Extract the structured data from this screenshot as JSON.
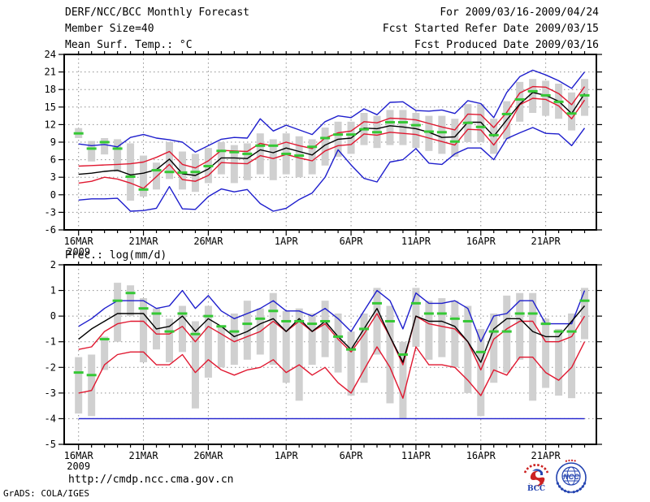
{
  "header": {
    "title": "DERF/NCC/BCC Monthly Forecast",
    "for_line": "For 2009/03/16-2009/04/24",
    "member_line": "Member Size=40",
    "refer_line": "Fcst Started Refer Date 2009/03/15",
    "produced_line": "Fcst Produced Date 2009/03/16"
  },
  "footer": {
    "url": "http://cmdp.ncc.cma.gov.cn",
    "credit": "GrADS: COLA/IGES",
    "bcc_label": "BCC",
    "ncc_label": "NCC"
  },
  "colors": {
    "line_blue": "#1e1ecd",
    "line_red": "#e01830",
    "line_black": "#000000",
    "dash_green": "#35c835",
    "bar_gray": "#d0d0d0",
    "grid_gray": "#8f8f8f",
    "frame_black": "#000000",
    "logo_blue": "#2343b0",
    "logo_red": "#cc2222"
  },
  "chart_data": [
    {
      "type": "line",
      "title": "Mean Surf. Temp.: °C",
      "ylim": [
        -6,
        24
      ],
      "yticks": [
        24,
        21,
        18,
        15,
        12,
        9,
        6,
        3,
        0,
        -3,
        -6
      ],
      "days": 40,
      "xticks": [
        {
          "day": 0,
          "label": "16MAR",
          "sub": "2009"
        },
        {
          "day": 5,
          "label": "21MAR"
        },
        {
          "day": 10,
          "label": "26MAR"
        },
        {
          "day": 16,
          "label": "1APR"
        },
        {
          "day": 21,
          "label": "6APR"
        },
        {
          "day": 26,
          "label": "11APR"
        },
        {
          "day": 31,
          "label": "16APR"
        },
        {
          "day": 36,
          "label": "21APR"
        }
      ],
      "series": {
        "blue_max": [
          8.7,
          8.4,
          8.6,
          8.2,
          9.8,
          10.3,
          9.7,
          9.4,
          9.0,
          7.3,
          8.4,
          9.5,
          9.8,
          9.7,
          13.0,
          10.9,
          11.9,
          11.1,
          10.3,
          12.5,
          13.5,
          13.2,
          14.7,
          13.7,
          15.8,
          15.9,
          14.4,
          14.3,
          14.5,
          13.9,
          16.1,
          15.6,
          13.2,
          17.5,
          20.2,
          21.3,
          20.5,
          19.5,
          18.2,
          21.0
        ],
        "red_upper": [
          4.9,
          5.0,
          5.1,
          5.2,
          5.3,
          5.6,
          6.4,
          7.4,
          5.2,
          4.6,
          5.8,
          7.6,
          7.5,
          7.4,
          8.8,
          8.3,
          9.0,
          8.4,
          7.9,
          9.7,
          10.6,
          10.9,
          12.5,
          12.3,
          13.1,
          13.0,
          12.8,
          12.2,
          11.6,
          11.1,
          13.8,
          13.7,
          11.5,
          14.1,
          17.4,
          18.5,
          18.4,
          17.3,
          15.4,
          18.5
        ],
        "mean_black": [
          3.5,
          3.7,
          4.0,
          4.2,
          3.4,
          3.7,
          4.3,
          6.1,
          3.6,
          3.3,
          4.4,
          6.3,
          6.3,
          6.2,
          7.7,
          7.2,
          8.0,
          7.4,
          6.8,
          8.5,
          9.5,
          9.7,
          11.4,
          11.3,
          11.8,
          11.6,
          11.3,
          10.7,
          9.8,
          9.9,
          12.4,
          12.4,
          10.0,
          12.8,
          15.5,
          17.5,
          17.0,
          16.0,
          13.9,
          17.3
        ],
        "red_lower": [
          2.0,
          2.3,
          3.0,
          2.7,
          2.0,
          1.1,
          3.1,
          5.2,
          2.6,
          2.3,
          3.3,
          5.5,
          5.4,
          5.3,
          6.7,
          6.2,
          6.9,
          6.3,
          5.8,
          7.5,
          8.4,
          8.6,
          10.4,
          10.2,
          10.7,
          10.5,
          10.3,
          9.7,
          9.1,
          8.5,
          11.2,
          11.1,
          8.5,
          11.5,
          15.4,
          16.5,
          16.3,
          15.2,
          13.0,
          16.2
        ],
        "blue_min": [
          -0.9,
          -0.7,
          -0.7,
          -0.6,
          -2.8,
          -2.7,
          -2.3,
          1.4,
          -2.4,
          -2.5,
          -0.3,
          1.0,
          0.5,
          0.9,
          -1.5,
          -2.8,
          -2.3,
          -0.8,
          0.3,
          3.0,
          7.7,
          5.1,
          2.8,
          2.2,
          5.6,
          6.0,
          7.9,
          5.4,
          5.2,
          7.0,
          8.0,
          8.0,
          6.0,
          9.6,
          10.6,
          11.5,
          10.5,
          10.4,
          8.4,
          11.4
        ],
        "green_dash": [
          10.5,
          7.9,
          9.0,
          7.9,
          3.1,
          0.9,
          4.2,
          3.9,
          3.8,
          3.9,
          4.9,
          7.5,
          7.3,
          7.0,
          8.4,
          8.4,
          7.0,
          6.7,
          8.2,
          9.7,
          10.3,
          10.3,
          11.2,
          10.7,
          12.4,
          12.4,
          11.9,
          10.8,
          10.7,
          9.1,
          12.3,
          11.6,
          10.2,
          13.8,
          16.3,
          17.7,
          17.0,
          15.9,
          13.9,
          17.0
        ],
        "bar_range": [
          [
            9.7,
            11.4
          ],
          [
            5.7,
            9.2
          ],
          [
            6.9,
            9.7
          ],
          [
            3.9,
            9.5
          ],
          [
            -1.0,
            8.8
          ],
          [
            -0.3,
            6.7
          ],
          [
            0.9,
            5.5
          ],
          [
            2.7,
            9.0
          ],
          [
            0.9,
            7.4
          ],
          [
            0.5,
            7.0
          ],
          [
            2.0,
            8.0
          ],
          [
            3.5,
            9.0
          ],
          [
            2.0,
            8.5
          ],
          [
            2.5,
            8.8
          ],
          [
            3.5,
            10.5
          ],
          [
            2.5,
            9.5
          ],
          [
            3.5,
            10.5
          ],
          [
            3.0,
            10.0
          ],
          [
            3.5,
            9.5
          ],
          [
            5.0,
            11.5
          ],
          [
            6.5,
            12.5
          ],
          [
            7.0,
            12.5
          ],
          [
            8.5,
            14.0
          ],
          [
            8.0,
            13.5
          ],
          [
            8.5,
            14.5
          ],
          [
            8.5,
            14.5
          ],
          [
            8.0,
            14.0
          ],
          [
            7.5,
            13.5
          ],
          [
            7.0,
            13.5
          ],
          [
            6.5,
            13.0
          ],
          [
            9.0,
            15.5
          ],
          [
            9.0,
            15.5
          ],
          [
            7.0,
            13.0
          ],
          [
            9.5,
            16.0
          ],
          [
            12.5,
            19.3
          ],
          [
            14.0,
            19.8
          ],
          [
            13.5,
            19.5
          ],
          [
            13.0,
            19.0
          ],
          [
            11.0,
            17.5
          ],
          [
            13.5,
            19.8
          ]
        ]
      }
    },
    {
      "type": "line",
      "title": "Prec.: log(mm/d)",
      "ylim": [
        -5,
        2
      ],
      "yticks": [
        2,
        1,
        0,
        -1,
        -2,
        -3,
        -4,
        -5
      ],
      "days": 40,
      "xticks": [
        {
          "day": 0,
          "label": "16MAR",
          "sub": "2009"
        },
        {
          "day": 5,
          "label": "21MAR"
        },
        {
          "day": 10,
          "label": "26MAR"
        },
        {
          "day": 16,
          "label": "1APR"
        },
        {
          "day": 21,
          "label": "6APR"
        },
        {
          "day": 26,
          "label": "11APR"
        },
        {
          "day": 31,
          "label": "16APR"
        },
        {
          "day": 36,
          "label": "21APR"
        }
      ],
      "series": {
        "blue_max": [
          -0.4,
          -0.1,
          0.3,
          0.6,
          0.6,
          0.6,
          0.3,
          0.4,
          1.0,
          0.3,
          0.8,
          0.2,
          -0.1,
          0.1,
          0.3,
          0.6,
          0.2,
          0.2,
          0.0,
          0.3,
          -0.1,
          -0.6,
          0.2,
          1.0,
          0.6,
          -0.5,
          0.9,
          0.5,
          0.5,
          0.6,
          0.3,
          -1.0,
          0.0,
          0.1,
          0.6,
          0.6,
          -0.3,
          -0.3,
          -0.3,
          1.0
        ],
        "red_upper": [
          -1.3,
          -1.2,
          -0.6,
          -0.3,
          -0.2,
          -0.2,
          -0.7,
          -0.7,
          -0.4,
          -1.0,
          -0.4,
          -0.7,
          -1.0,
          -0.8,
          -0.6,
          -0.2,
          -0.6,
          -0.2,
          -0.6,
          -0.3,
          -0.9,
          -1.4,
          -0.7,
          0.1,
          -0.8,
          -1.9,
          0.0,
          -0.3,
          -0.4,
          -0.5,
          -1.0,
          -2.1,
          -0.9,
          -0.5,
          -0.2,
          -0.2,
          -1.0,
          -1.0,
          -0.8,
          0.0
        ],
        "mean_black": [
          -0.9,
          -0.5,
          -0.2,
          0.1,
          0.1,
          0.1,
          -0.5,
          -0.4,
          0.0,
          -0.6,
          -0.1,
          -0.4,
          -0.8,
          -0.6,
          -0.3,
          -0.1,
          -0.6,
          -0.1,
          -0.6,
          -0.2,
          -0.8,
          -1.3,
          -0.5,
          0.3,
          -0.8,
          -1.8,
          0.0,
          -0.2,
          -0.2,
          -0.4,
          -1.0,
          -1.8,
          -0.5,
          -0.1,
          -0.1,
          -0.6,
          -0.8,
          -0.8,
          -0.2,
          0.4
        ],
        "red_lower": [
          -3.0,
          -2.9,
          -1.9,
          -1.5,
          -1.4,
          -1.4,
          -1.9,
          -1.9,
          -1.5,
          -2.2,
          -1.7,
          -2.1,
          -2.3,
          -2.1,
          -2.0,
          -1.7,
          -2.2,
          -1.9,
          -2.3,
          -2.0,
          -2.6,
          -3.0,
          -2.1,
          -1.2,
          -2.0,
          -3.2,
          -1.2,
          -1.9,
          -1.9,
          -2.0,
          -2.5,
          -3.1,
          -2.1,
          -2.3,
          -1.6,
          -1.6,
          -2.2,
          -2.5,
          -2.0,
          -1.0
        ],
        "blue_min": [
          -4,
          -4,
          -4,
          -4,
          -4,
          -4,
          -4,
          -4,
          -4,
          -4,
          -4,
          -4,
          -4,
          -4,
          -4,
          -4,
          -4,
          -4,
          -4,
          -4,
          -4,
          -4,
          -4,
          -4,
          -4,
          -4,
          -4,
          -4,
          -4,
          -4,
          -4,
          -4,
          -4,
          -4,
          -4,
          -4,
          -4,
          -4,
          -4,
          -4
        ],
        "green_dash": [
          -2.2,
          -2.3,
          -0.9,
          0.6,
          0.9,
          0.3,
          0.1,
          -0.6,
          0.1,
          -0.7,
          0.0,
          -0.4,
          -0.6,
          -0.3,
          -0.1,
          0.2,
          -0.2,
          -0.2,
          -0.3,
          -0.2,
          -0.8,
          -1.3,
          -0.5,
          0.5,
          -0.2,
          -1.5,
          0.5,
          0.1,
          0.1,
          -0.1,
          -0.2,
          -1.4,
          -0.6,
          -0.6,
          0.1,
          0.1,
          -0.3,
          -0.6,
          -0.6,
          0.6
        ],
        "bar_range": [
          [
            -3.8,
            -1.6
          ],
          [
            -3.9,
            -1.5
          ],
          [
            -2.1,
            -0.8
          ],
          [
            -1.0,
            1.3
          ],
          [
            0.0,
            1.2
          ],
          [
            -1.8,
            0.7
          ],
          [
            -1.3,
            0.3
          ],
          [
            -1.8,
            -0.1
          ],
          [
            -1.4,
            0.4
          ],
          [
            -3.6,
            -0.2
          ],
          [
            -2.4,
            0.4
          ],
          [
            -2.0,
            -0.4
          ],
          [
            -1.9,
            0.1
          ],
          [
            -1.7,
            0.6
          ],
          [
            -1.5,
            0.3
          ],
          [
            -1.9,
            0.9
          ],
          [
            -2.6,
            0.2
          ],
          [
            -3.3,
            0.3
          ],
          [
            -1.9,
            0.1
          ],
          [
            -1.6,
            0.6
          ],
          [
            -2.2,
            0.1
          ],
          [
            -3.1,
            -0.6
          ],
          [
            -2.6,
            0.1
          ],
          [
            -1.5,
            1.1
          ],
          [
            -3.4,
            0.4
          ],
          [
            -4.0,
            -1.0
          ],
          [
            -1.2,
            1.1
          ],
          [
            -1.7,
            0.6
          ],
          [
            -1.6,
            0.7
          ],
          [
            -2.0,
            0.6
          ],
          [
            -3.0,
            0.4
          ],
          [
            -3.9,
            -0.5
          ],
          [
            -2.6,
            0.1
          ],
          [
            -2.2,
            0.8
          ],
          [
            -1.7,
            0.9
          ],
          [
            -3.3,
            0.9
          ],
          [
            -2.8,
            -0.1
          ],
          [
            -3.1,
            -0.5
          ],
          [
            -3.2,
            0.1
          ],
          [
            -0.9,
            1.1
          ]
        ]
      }
    }
  ]
}
